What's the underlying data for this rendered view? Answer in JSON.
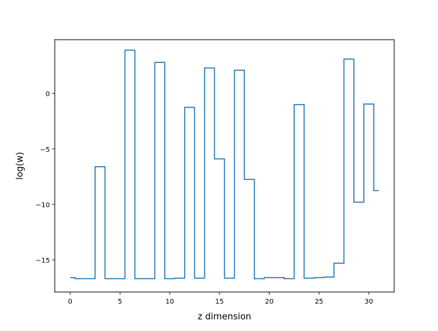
{
  "chart_data": {
    "type": "line",
    "drawstyle": "steps-mid",
    "title": "",
    "xlabel": "z dimension",
    "ylabel": "log(w)",
    "xlim": [
      -1.55,
      32.55
    ],
    "ylim": [
      -17.9,
      4.85
    ],
    "xticks": [
      0,
      5,
      10,
      15,
      20,
      25,
      30
    ],
    "yticks": [
      -15,
      -10,
      -5,
      0
    ],
    "ytick_labels": [
      "−15",
      "−10",
      "−5",
      "0"
    ],
    "grid": false,
    "legend": "none",
    "line_color": "#1f77b4",
    "series": [
      {
        "x": [
          0,
          1,
          2,
          3,
          4,
          5,
          6,
          7,
          8,
          9,
          10,
          11,
          12,
          13,
          14,
          15,
          16,
          17,
          18,
          19,
          20,
          21,
          22,
          23,
          24,
          25,
          26,
          27,
          28,
          29,
          30,
          31
        ],
        "values": [
          -16.6,
          -16.7,
          -16.7,
          -6.6,
          -16.7,
          -16.7,
          3.9,
          -16.7,
          -16.7,
          2.8,
          -16.7,
          -16.65,
          -1.25,
          -16.65,
          2.3,
          -5.9,
          -16.65,
          2.1,
          -7.75,
          -16.7,
          -16.6,
          -16.6,
          -16.7,
          -1.0,
          -16.65,
          -16.6,
          -16.55,
          -15.3,
          3.1,
          -9.8,
          -0.95,
          -8.75
        ]
      }
    ]
  }
}
